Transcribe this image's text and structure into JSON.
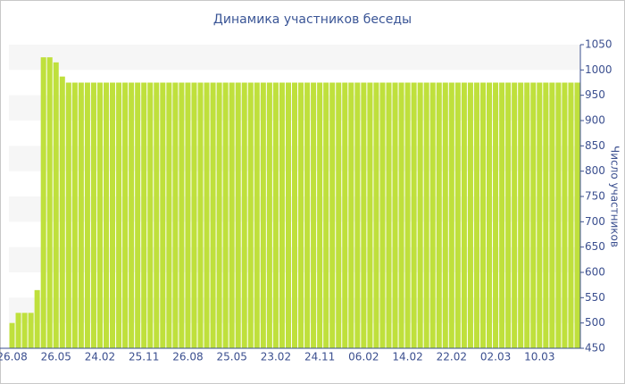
{
  "chart_data": {
    "type": "bar",
    "title": "Динамика участников беседы",
    "y_label": "Число участников",
    "categories": [
      "26.08",
      null,
      null,
      null,
      null,
      null,
      null,
      "26.05",
      null,
      null,
      null,
      null,
      null,
      null,
      "24.02",
      null,
      null,
      null,
      null,
      null,
      null,
      "25.11",
      null,
      null,
      null,
      null,
      null,
      null,
      "26.08",
      null,
      null,
      null,
      null,
      null,
      null,
      "25.05",
      null,
      null,
      null,
      null,
      null,
      null,
      "23.02",
      null,
      null,
      null,
      null,
      null,
      null,
      "24.11",
      null,
      null,
      null,
      null,
      null,
      null,
      "06.02",
      null,
      null,
      null,
      null,
      null,
      null,
      "14.02",
      null,
      null,
      null,
      null,
      null,
      null,
      "22.02",
      null,
      null,
      null,
      null,
      null,
      null,
      "02.03",
      null,
      null,
      null,
      null,
      null,
      null,
      "10.03",
      null,
      null,
      null,
      null,
      null,
      null
    ],
    "values": [
      500,
      520,
      520,
      520,
      565,
      1025,
      1025,
      1015,
      987,
      975,
      975,
      975,
      975,
      975,
      975,
      975,
      975,
      975,
      975,
      975,
      975,
      975,
      975,
      975,
      975,
      975,
      975,
      975,
      975,
      975,
      975,
      975,
      975,
      975,
      975,
      975,
      975,
      975,
      975,
      975,
      975,
      975,
      975,
      975,
      975,
      975,
      975,
      975,
      975,
      975,
      975,
      975,
      975,
      975,
      975,
      975,
      975,
      975,
      975,
      975,
      975,
      975,
      975,
      975,
      975,
      975,
      975,
      975,
      975,
      975,
      975,
      975,
      975,
      975,
      975,
      975,
      975,
      975,
      975,
      975,
      975,
      975,
      975,
      975,
      975,
      975,
      975,
      975,
      975,
      975,
      975
    ],
    "color": "#bfe03c",
    "ylim": [
      450,
      1050
    ],
    "yticks": [
      450,
      500,
      550,
      600,
      650,
      700,
      750,
      800,
      850,
      900,
      950,
      1000,
      1050
    ],
    "grid": true
  }
}
